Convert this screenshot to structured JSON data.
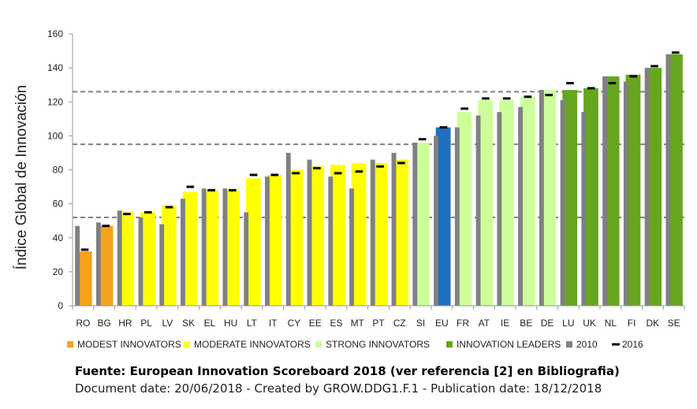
{
  "colors": {
    "modest": "#f7a21b",
    "moderate": "#ffff00",
    "strong": "#ccff99",
    "leaders": "#66a61e",
    "eu": "#1f6fc0",
    "bar2010": "#808080",
    "marker2016": "#000000",
    "threshold": "#808080"
  },
  "caption": {
    "source": "Fuente: European Innovation Scoreboard 2018  (ver referencia [2] en Bibliografia)",
    "document_info": "Document date: 20/06/2018 - Created by GROW.DDG1.F.1 - Publication date: 18/12/2018"
  },
  "chart_data": {
    "type": "bar",
    "ylabel": "Índice Global de Innovación",
    "xlabel": "",
    "ylim": [
      0,
      160
    ],
    "yticks": [
      0,
      20,
      40,
      60,
      80,
      100,
      120,
      140,
      160
    ],
    "thresholds": [
      52,
      95,
      126
    ],
    "categories": [
      "RO",
      "BG",
      "HR",
      "PL",
      "LV",
      "SK",
      "EL",
      "HU",
      "LT",
      "IT",
      "CY",
      "EE",
      "ES",
      "MT",
      "PT",
      "CZ",
      "SI",
      "EU",
      "FR",
      "AT",
      "IE",
      "BE",
      "DE",
      "LU",
      "UK",
      "NL",
      "FI",
      "DK",
      "SE"
    ],
    "groups": [
      "modest",
      "modest",
      "moderate",
      "moderate",
      "moderate",
      "moderate",
      "moderate",
      "moderate",
      "moderate",
      "moderate",
      "moderate",
      "moderate",
      "moderate",
      "moderate",
      "moderate",
      "moderate",
      "strong",
      "eu",
      "strong",
      "strong",
      "strong",
      "strong",
      "strong",
      "leaders",
      "leaders",
      "leaders",
      "leaders",
      "leaders",
      "leaders"
    ],
    "series": [
      {
        "name": "2018",
        "values": [
          32,
          47,
          55,
          55,
          59,
          67,
          68,
          68,
          75,
          77,
          80,
          82,
          83,
          84,
          84,
          86,
          96,
          105,
          114,
          121,
          121,
          123,
          127,
          127,
          128,
          135,
          136,
          140,
          148
        ]
      },
      {
        "name": "2010",
        "values": [
          47,
          49,
          56,
          52,
          48,
          63,
          69,
          69,
          55,
          76,
          90,
          86,
          76,
          69,
          86,
          90,
          96,
          100,
          105,
          112,
          114,
          117,
          127,
          121,
          114,
          135,
          132,
          140,
          148
        ]
      },
      {
        "name": "2016",
        "values": [
          33,
          47,
          54,
          55,
          58,
          70,
          68,
          68,
          77,
          77,
          78,
          81,
          78,
          79,
          82,
          84,
          98,
          105,
          116,
          122,
          122,
          123,
          124,
          131,
          128,
          131,
          135,
          141,
          149
        ]
      }
    ],
    "legend": {
      "position": "bottom",
      "items": [
        {
          "key": "modest",
          "label": "MODEST INNOVATORS"
        },
        {
          "key": "moderate",
          "label": "MODERATE INNOVATORS"
        },
        {
          "key": "strong",
          "label": "STRONG INNOVATORS"
        },
        {
          "key": "leaders",
          "label": "INNOVATION LEADERS"
        },
        {
          "key": "bar2010",
          "label": "2010"
        },
        {
          "key": "marker2016",
          "label": "2016"
        }
      ]
    },
    "grid": false
  }
}
